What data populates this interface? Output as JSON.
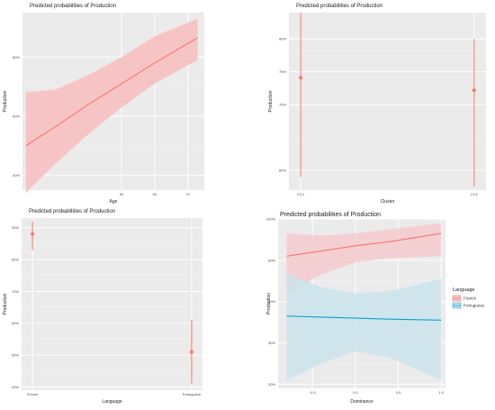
{
  "chart_data": [
    {
      "type": "line",
      "title": "Predicted probabilities of Production",
      "xlabel": "Age",
      "ylabel": "Production",
      "xlim": [
        20,
        75
      ],
      "ylim": [
        0.35,
        0.95
      ],
      "xticks": [
        50,
        60,
        70
      ],
      "xtick_labels": [
        "50",
        "60",
        "70"
      ],
      "yticks": [
        0.4,
        0.6,
        0.8
      ],
      "ytick_labels": [
        "40%",
        "60%",
        "80%"
      ],
      "grid": true,
      "series": [
        {
          "x": [
            21,
            30,
            40,
            50,
            60,
            73
          ],
          "y": [
            0.5,
            0.565,
            0.64,
            0.71,
            0.78,
            0.865
          ],
          "lower": [
            0.34,
            0.44,
            0.54,
            0.63,
            0.71,
            0.79
          ],
          "upper": [
            0.68,
            0.69,
            0.74,
            0.8,
            0.87,
            0.93
          ],
          "color": "#f8766d"
        }
      ]
    },
    {
      "type": "scatter",
      "title": "Predicted probabilities of Production",
      "xlabel": "Cluster",
      "ylabel": "Production",
      "categories": [
        "CC1",
        "CC2"
      ],
      "ylim": [
        0.57,
        0.84
      ],
      "yticks": [
        0.6,
        0.7,
        0.75,
        0.8
      ],
      "ytick_labels": [
        "60%",
        "70%",
        "75%",
        "80%"
      ],
      "grid": true,
      "series": [
        {
          "values": [
            0.741,
            0.722
          ],
          "lower": [
            0.59,
            0.575
          ],
          "upper": [
            0.84,
            0.8
          ],
          "color": "#f8766d"
        }
      ]
    },
    {
      "type": "scatter",
      "title": "Predicted probabilities of Production",
      "xlabel": "Language",
      "ylabel": "Production",
      "categories": [
        "French",
        "Portuguese"
      ],
      "ylim": [
        0.39,
        0.93
      ],
      "yticks": [
        0.4,
        0.5,
        0.6,
        0.7,
        0.8,
        0.9
      ],
      "ytick_labels": [
        "40%",
        "50%",
        "60%",
        "70%",
        "80%",
        "90%"
      ],
      "grid": true,
      "series": [
        {
          "values": [
            0.88,
            0.51
          ],
          "lower": [
            0.83,
            0.41
          ],
          "upper": [
            0.92,
            0.61
          ],
          "color": "#f8766d"
        }
      ]
    },
    {
      "type": "line",
      "title": "Predicted probabilities of Production",
      "xlabel": "Dominance",
      "ylabel": "Production",
      "xlim": [
        -0.9,
        1.05
      ],
      "ylim": [
        0.18,
        1.0
      ],
      "xticks": [
        -0.5,
        0.0,
        0.5,
        1.0
      ],
      "xtick_labels": [
        "-0.5",
        "0.0",
        "0.5",
        "1.0"
      ],
      "yticks": [
        0.2,
        0.4,
        0.6,
        0.8,
        1.0
      ],
      "ytick_labels": [
        "20%",
        "40%",
        "60%",
        "80%",
        "100%"
      ],
      "grid": true,
      "legend": {
        "title": "Language",
        "position": "right"
      },
      "series": [
        {
          "name": "French",
          "x": [
            -0.8,
            -0.4,
            0.0,
            0.4,
            1.0
          ],
          "y": [
            0.82,
            0.845,
            0.87,
            0.89,
            0.93
          ],
          "lower": [
            0.64,
            0.73,
            0.79,
            0.81,
            0.82
          ],
          "upper": [
            0.93,
            0.92,
            0.93,
            0.95,
            0.98
          ],
          "color": "#f8766d",
          "band_color": "#f6c8cb"
        },
        {
          "name": "Portuguese",
          "x": [
            -0.8,
            -0.4,
            0.0,
            0.4,
            1.0
          ],
          "y": [
            0.53,
            0.525,
            0.52,
            0.515,
            0.51
          ],
          "lower": [
            0.22,
            0.3,
            0.36,
            0.33,
            0.22
          ],
          "upper": [
            0.74,
            0.67,
            0.64,
            0.65,
            0.71
          ],
          "color": "#00a6c8",
          "band_color": "#c9e2ec"
        }
      ]
    }
  ]
}
